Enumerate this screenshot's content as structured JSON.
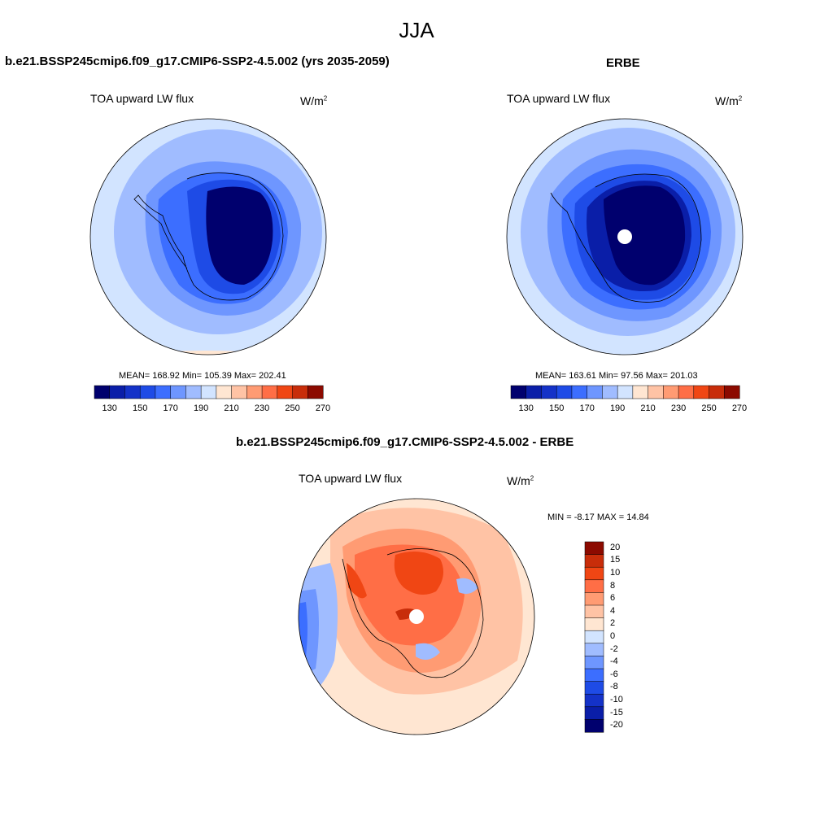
{
  "figure": {
    "title": "JJA"
  },
  "panels": [
    {
      "heading": "b.e21.BSSP245cmip6.f09_g17.CMIP6-SSP2-4.5.002 (yrs 2035-2059)",
      "variable": "TOA upward LW flux",
      "units": "W/m",
      "units_sup": "2",
      "stats": "MEAN= 168.92  Min= 105.39  Max= 202.41"
    },
    {
      "heading": "ERBE",
      "variable": "TOA upward LW flux",
      "units": "W/m",
      "units_sup": "2",
      "stats": "MEAN= 163.61  Min=  97.56  Max= 201.03"
    },
    {
      "heading": "b.e21.BSSP245cmip6.f09_g17.CMIP6-SSP2-4.5.002 - ERBE",
      "variable": "TOA upward LW flux",
      "units": "W/m",
      "units_sup": "2",
      "stats": "MIN =  -8.17 MAX =  14.84"
    }
  ],
  "colorbar_abs": {
    "colors": [
      "#00006e",
      "#0a1ea8",
      "#1432c8",
      "#1e4be6",
      "#3c6eff",
      "#6e96ff",
      "#a0bcff",
      "#d2e4ff",
      "#ffe6d2",
      "#ffc3a5",
      "#ff9b73",
      "#ff6e46",
      "#f04614",
      "#c82d0a",
      "#8c0a00"
    ],
    "tick_labels": [
      "130",
      "150",
      "170",
      "190",
      "210",
      "230",
      "250",
      "270"
    ]
  },
  "colorbar_diff": {
    "colors": [
      "#8c0a00",
      "#c82d0a",
      "#f04614",
      "#ff6e46",
      "#ff9b73",
      "#ffc3a5",
      "#ffe6d2",
      "#d2e4ff",
      "#a0bcff",
      "#6e96ff",
      "#3c6eff",
      "#1e4be6",
      "#1432c8",
      "#0a1ea8",
      "#00006e"
    ],
    "tick_labels": [
      "20",
      "15",
      "10",
      "8",
      "6",
      "4",
      "2",
      "0",
      "-2",
      "-4",
      "-6",
      "-8",
      "-10",
      "-15",
      "-20"
    ]
  }
}
